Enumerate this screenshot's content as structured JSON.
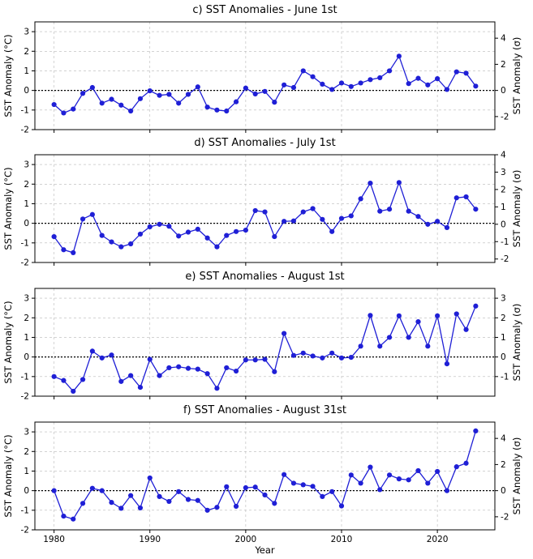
{
  "colors": {
    "series": "#1f1fd6",
    "marker": "#1f1fd6"
  },
  "chart_data": [
    {
      "type": "line",
      "title": "c) SST Anomalies - June 1st",
      "ylabel": "SST Anomaly (°C)",
      "ylabel_right": "SST Anomaly (σ)",
      "xlabel": "",
      "xlim": [
        1978,
        2026
      ],
      "ylim": [
        -2,
        3.5
      ],
      "yticks": [
        -2,
        -1,
        0,
        1,
        2,
        3
      ],
      "right_ticks": [
        -2,
        0,
        2,
        4
      ],
      "right_ylim": [
        -3.0,
        5.25
      ],
      "xticks": [
        1980,
        1990,
        2000,
        2010,
        2020
      ],
      "show_xticklabels": false,
      "grid": true,
      "x": [
        1980,
        1981,
        1982,
        1983,
        1984,
        1985,
        1986,
        1987,
        1988,
        1989,
        1990,
        1991,
        1992,
        1993,
        1994,
        1995,
        1996,
        1997,
        1998,
        1999,
        2000,
        2001,
        2002,
        2003,
        2004,
        2005,
        2006,
        2007,
        2008,
        2009,
        2010,
        2011,
        2012,
        2013,
        2014,
        2015,
        2016,
        2017,
        2018,
        2019,
        2020,
        2021,
        2022,
        2023,
        2024
      ],
      "values": [
        -0.72,
        -1.15,
        -0.95,
        -0.15,
        0.15,
        -0.65,
        -0.45,
        -0.75,
        -1.05,
        -0.42,
        -0.02,
        -0.25,
        -0.2,
        -0.65,
        -0.2,
        0.18,
        -0.85,
        -1.0,
        -1.05,
        -0.58,
        0.12,
        -0.18,
        -0.05,
        -0.6,
        0.28,
        0.15,
        1.0,
        0.7,
        0.32,
        0.05,
        0.38,
        0.2,
        0.38,
        0.55,
        0.65,
        1.0,
        1.75,
        0.35,
        0.62,
        0.28,
        0.6,
        0.05,
        0.95,
        0.88,
        0.22
      ]
    },
    {
      "type": "line",
      "title": "d) SST Anomalies - July 1st",
      "ylabel": "SST Anomaly (°C)",
      "ylabel_right": "SST Anomaly (σ)",
      "xlabel": "",
      "xlim": [
        1978,
        2026
      ],
      "ylim": [
        -2,
        3.5
      ],
      "yticks": [
        -2,
        -1,
        0,
        1,
        2,
        3
      ],
      "right_ticks": [
        -2,
        -1,
        0,
        1,
        2,
        3,
        4
      ],
      "right_ylim": [
        -2.2,
        4.0
      ],
      "xticks": [
        1980,
        1990,
        2000,
        2010,
        2020
      ],
      "show_xticklabels": false,
      "grid": true,
      "x": [
        1980,
        1981,
        1982,
        1983,
        1984,
        1985,
        1986,
        1987,
        1988,
        1989,
        1990,
        1991,
        1992,
        1993,
        1994,
        1995,
        1996,
        1997,
        1998,
        1999,
        2000,
        2001,
        2002,
        2003,
        2004,
        2005,
        2006,
        2007,
        2008,
        2009,
        2010,
        2011,
        2012,
        2013,
        2014,
        2015,
        2016,
        2017,
        2018,
        2019,
        2020,
        2021,
        2022,
        2023,
        2024
      ],
      "values": [
        -0.68,
        -1.35,
        -1.5,
        0.22,
        0.45,
        -0.62,
        -0.95,
        -1.2,
        -1.05,
        -0.55,
        -0.18,
        -0.05,
        -0.15,
        -0.65,
        -0.45,
        -0.3,
        -0.75,
        -1.2,
        -0.62,
        -0.42,
        -0.35,
        0.65,
        0.58,
        -0.68,
        0.1,
        0.12,
        0.58,
        0.75,
        0.2,
        -0.42,
        0.25,
        0.38,
        1.25,
        2.05,
        0.62,
        0.72,
        2.08,
        0.62,
        0.35,
        -0.05,
        0.1,
        -0.22,
        1.3,
        1.35,
        0.72
      ]
    },
    {
      "type": "line",
      "title": "e) SST Anomalies - August 1st",
      "ylabel": "SST Anomaly (°C)",
      "ylabel_right": "SST Anomaly (σ)",
      "xlabel": "",
      "xlim": [
        1978,
        2026
      ],
      "ylim": [
        -2,
        3.5
      ],
      "yticks": [
        -2,
        -1,
        0,
        1,
        2,
        3
      ],
      "right_ticks": [
        -1,
        0,
        1,
        2,
        3
      ],
      "right_ylim": [
        -2.0,
        3.5
      ],
      "xticks": [
        1980,
        1990,
        2000,
        2010,
        2020
      ],
      "show_xticklabels": false,
      "grid": true,
      "x": [
        1980,
        1981,
        1982,
        1983,
        1984,
        1985,
        1986,
        1987,
        1988,
        1989,
        1990,
        1991,
        1992,
        1993,
        1994,
        1995,
        1996,
        1997,
        1998,
        1999,
        2000,
        2001,
        2002,
        2003,
        2004,
        2005,
        2006,
        2007,
        2008,
        2009,
        2010,
        2011,
        2012,
        2013,
        2014,
        2015,
        2016,
        2017,
        2018,
        2019,
        2020,
        2021,
        2022,
        2023,
        2024
      ],
      "values": [
        -1.0,
        -1.2,
        -1.75,
        -1.15,
        0.3,
        -0.05,
        0.1,
        -1.25,
        -0.95,
        -1.55,
        -0.12,
        -0.95,
        -0.55,
        -0.5,
        -0.58,
        -0.62,
        -0.85,
        -1.6,
        -0.55,
        -0.72,
        -0.15,
        -0.15,
        -0.12,
        -0.75,
        1.2,
        0.08,
        0.2,
        0.05,
        -0.05,
        0.2,
        -0.05,
        -0.02,
        0.55,
        2.12,
        0.55,
        1.0,
        2.1,
        1.0,
        1.8,
        0.55,
        2.1,
        -0.35,
        2.2,
        1.4,
        2.6
      ]
    },
    {
      "type": "line",
      "title": "f) SST Anomalies - August 31st",
      "ylabel": "SST Anomaly (°C)",
      "ylabel_right": "SST Anomaly (σ)",
      "xlabel": "Year",
      "xlim": [
        1978,
        2026
      ],
      "ylim": [
        -2,
        3.5
      ],
      "yticks": [
        -2,
        -1,
        0,
        1,
        2,
        3
      ],
      "right_ticks": [
        -2,
        0,
        2,
        4
      ],
      "right_ylim": [
        -3.0,
        5.25
      ],
      "xticks": [
        1980,
        1990,
        2000,
        2010,
        2020
      ],
      "show_xticklabels": true,
      "grid": true,
      "x": [
        1980,
        1981,
        1982,
        1983,
        1984,
        1985,
        1986,
        1987,
        1988,
        1989,
        1990,
        1991,
        1992,
        1993,
        1994,
        1995,
        1996,
        1997,
        1998,
        1999,
        2000,
        2001,
        2002,
        2003,
        2004,
        2005,
        2006,
        2007,
        2008,
        2009,
        2010,
        2011,
        2012,
        2013,
        2014,
        2015,
        2016,
        2017,
        2018,
        2019,
        2020,
        2021,
        2022,
        2023,
        2024
      ],
      "values": [
        0.0,
        -1.3,
        -1.45,
        -0.65,
        0.12,
        0.0,
        -0.6,
        -0.9,
        -0.25,
        -0.88,
        0.65,
        -0.3,
        -0.55,
        -0.05,
        -0.45,
        -0.5,
        -1.0,
        -0.85,
        0.2,
        -0.8,
        0.15,
        0.18,
        -0.22,
        -0.65,
        0.82,
        0.38,
        0.3,
        0.22,
        -0.3,
        -0.05,
        -0.78,
        0.8,
        0.38,
        1.2,
        0.05,
        0.8,
        0.6,
        0.55,
        1.02,
        0.38,
        0.98,
        0.0,
        1.22,
        1.4,
        3.05
      ]
    }
  ]
}
